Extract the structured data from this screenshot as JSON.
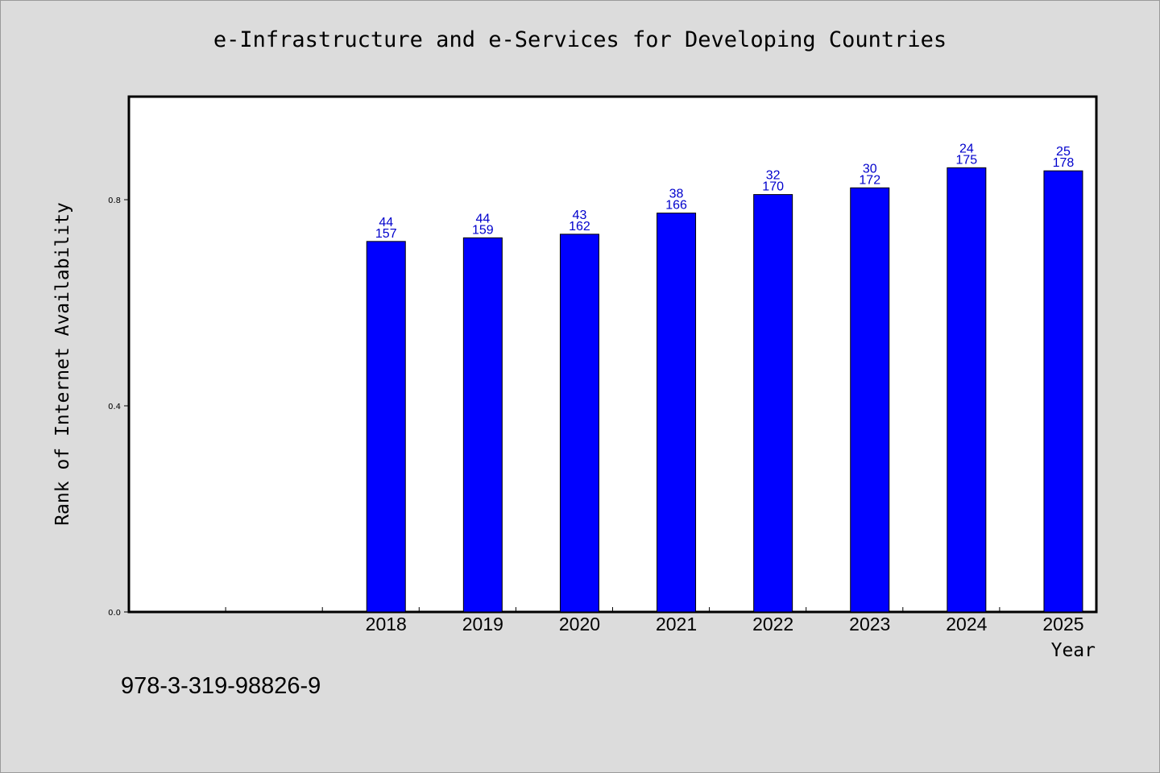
{
  "chart_data": {
    "type": "bar",
    "title": "e-Infrastructure and e-Services for Developing Countries",
    "xlabel": "Year",
    "ylabel": "Rank of Internet Availability",
    "categories": [
      "",
      "",
      "2018",
      "2019",
      "2020",
      "2021",
      "2022",
      "2023",
      "2024",
      "2025"
    ],
    "values": [
      null,
      null,
      0.719,
      0.726,
      0.733,
      0.774,
      0.81,
      0.823,
      0.862,
      0.856
    ],
    "data_labels_top": [
      "",
      "",
      "44",
      "44",
      "43",
      "38",
      "32",
      "30",
      "24",
      "25"
    ],
    "data_labels_bottom": [
      "",
      "",
      "157",
      "159",
      "162",
      "166",
      "170",
      "172",
      "175",
      "178"
    ],
    "ylim": [
      0.0,
      1.0
    ],
    "yticks": [
      "0.0",
      "0.4",
      "0.8"
    ],
    "ytick_values": [
      0.0,
      0.4,
      0.8
    ],
    "bar_color": "#0000ff",
    "label_color": "#0000cc",
    "grid": false,
    "legend": "none"
  },
  "footer": {
    "id": "978-3-319-98826-9"
  }
}
